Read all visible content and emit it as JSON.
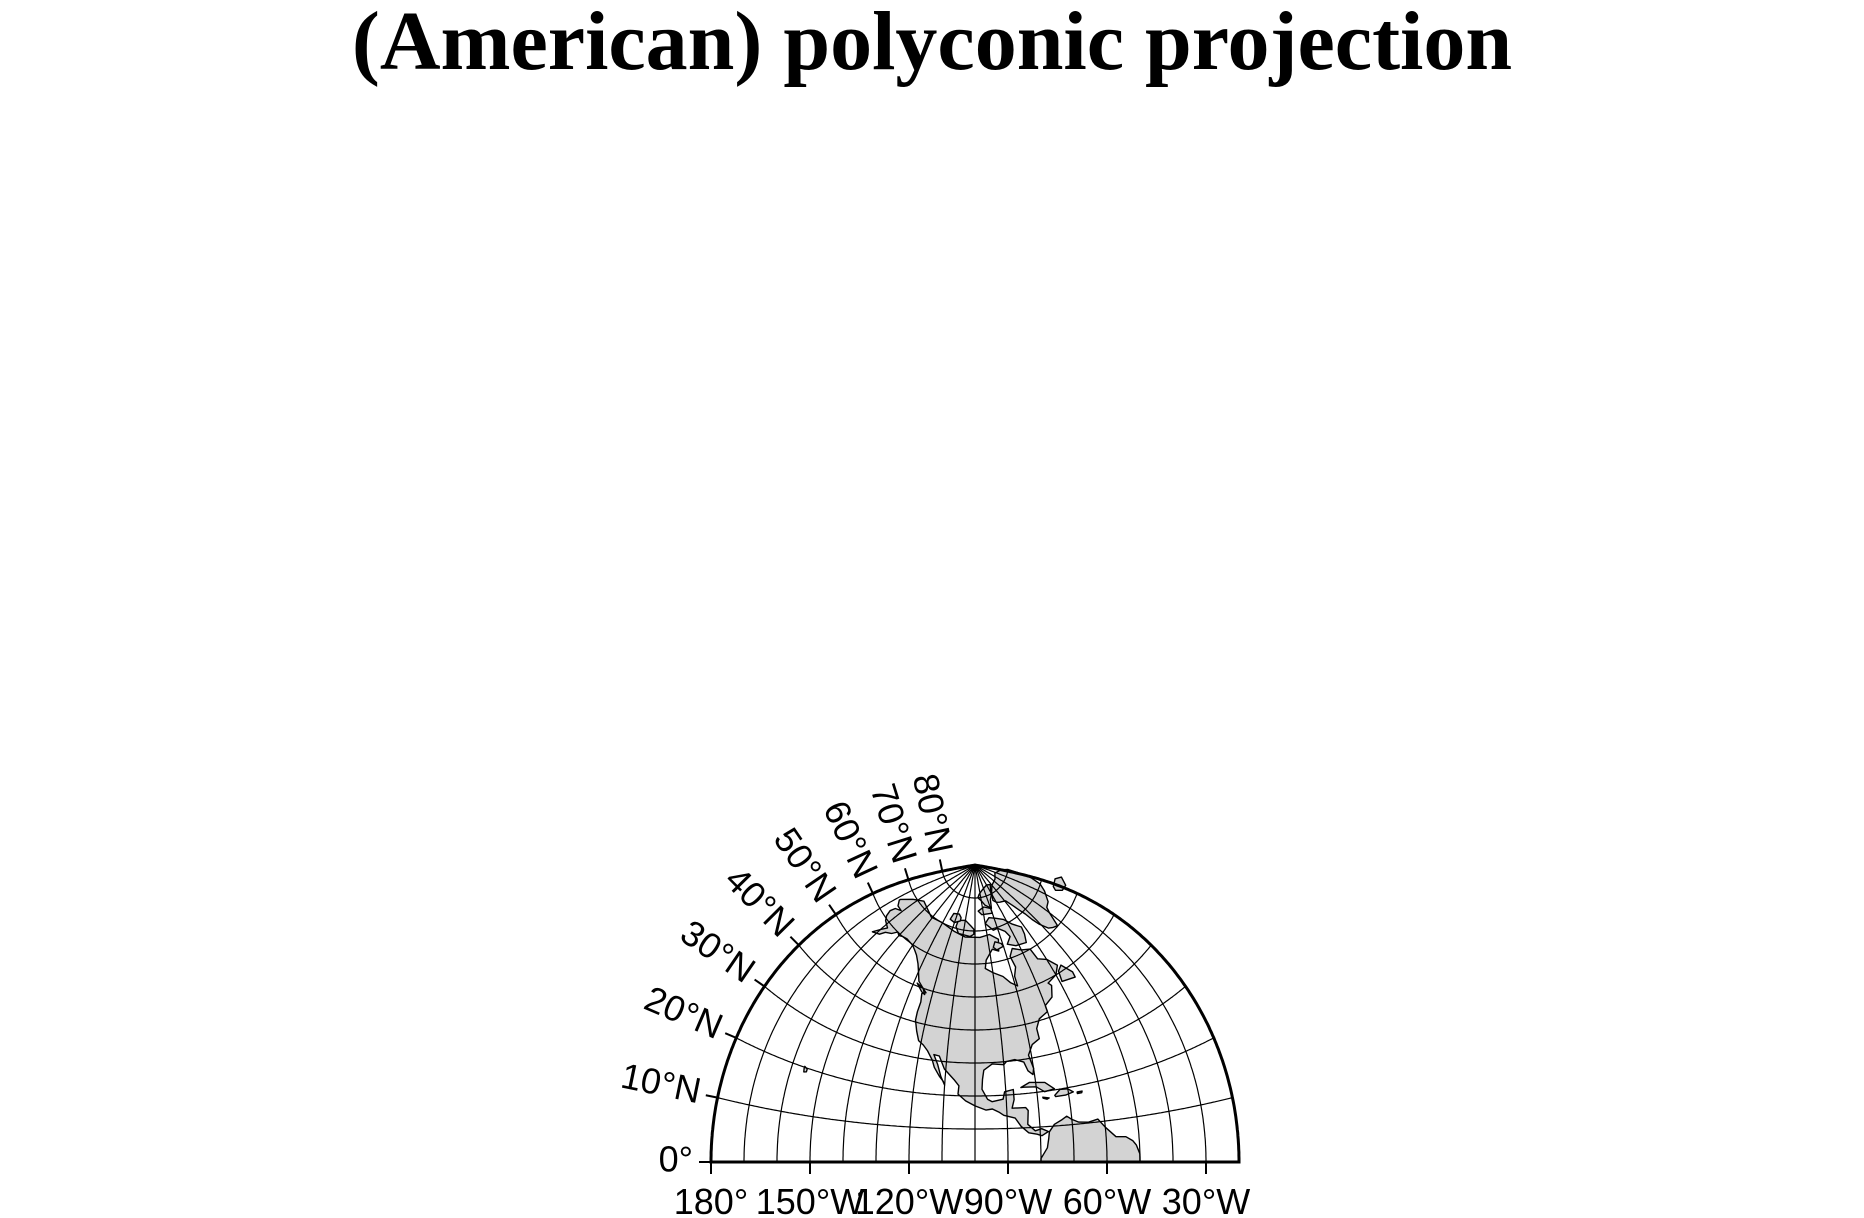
{
  "map": {
    "title": "(American) polyconic projection",
    "projection": "American polyconic",
    "central_meridian": "100°W",
    "extent": {
      "lon_min": -180,
      "lon_max": -20,
      "lat_min": 0,
      "lat_max": 90
    },
    "graticule": {
      "lon_step_deg": 10,
      "lat_step_deg": 10,
      "gridlines": true
    },
    "longitude_labels": [
      {
        "lon": -180,
        "text": "180°"
      },
      {
        "lon": -150,
        "text": "150°W"
      },
      {
        "lon": -120,
        "text": "120°W"
      },
      {
        "lon": -90,
        "text": "90°W"
      },
      {
        "lon": -60,
        "text": "60°W"
      },
      {
        "lon": -30,
        "text": "30°W"
      }
    ],
    "latitude_labels": [
      {
        "lat": 0,
        "text": "0°"
      },
      {
        "lat": 10,
        "text": "10°N"
      },
      {
        "lat": 20,
        "text": "20°N"
      },
      {
        "lat": 30,
        "text": "30°N"
      },
      {
        "lat": 40,
        "text": "40°N"
      },
      {
        "lat": 50,
        "text": "50°N"
      },
      {
        "lat": 60,
        "text": "60°N"
      },
      {
        "lat": 70,
        "text": "70°N"
      },
      {
        "lat": 80,
        "text": "80°N"
      }
    ],
    "colors": {
      "land": "#d3d3d3",
      "coastline": "#000000",
      "water": "#ffffff",
      "grid": "#000000"
    },
    "features": [
      "North America",
      "Greenland",
      "Central America",
      "Caribbean islands",
      "South America (northern part)",
      "Hawaii"
    ]
  }
}
